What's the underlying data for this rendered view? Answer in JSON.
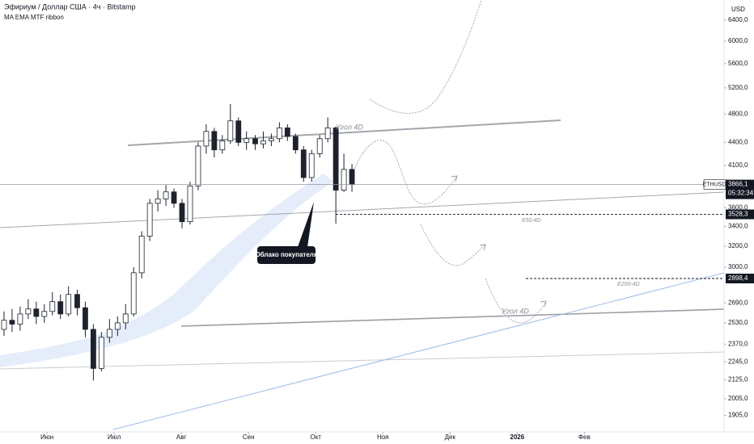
{
  "chart_data": {
    "type": "candlestick",
    "title": "Эфириум / Доллар США · 4ч · Bitstamp",
    "subtitle": "MA EMA MTF ribbon",
    "currency": "USD",
    "symbol": "ETHUSD",
    "countdown": "05:32:34",
    "log_scale": true,
    "color": "#1e222d",
    "x": [
      5.36,
      5.48,
      5.6,
      5.72,
      5.84,
      5.96,
      6.08,
      6.2,
      6.32,
      6.45,
      6.57,
      6.69,
      6.81,
      6.93,
      7.05,
      7.17,
      7.29,
      7.41,
      7.53,
      7.65,
      7.77,
      7.89,
      8.01,
      8.13,
      8.25,
      8.37,
      8.49,
      8.61,
      8.73,
      8.85,
      8.97,
      9.1,
      9.22,
      9.34,
      9.46,
      9.58,
      9.7,
      9.82,
      9.94,
      10.06,
      10.18,
      10.3,
      10.42,
      10.54
    ],
    "open": [
      2480,
      2550,
      2520,
      2600,
      2640,
      2580,
      2620,
      2700,
      2600,
      2760,
      2650,
      2480,
      2200,
      2420,
      2480,
      2530,
      2600,
      2950,
      3300,
      3650,
      3700,
      3780,
      3650,
      3450,
      3850,
      4350,
      4550,
      4300,
      4420,
      4700,
      4400,
      4450,
      4380,
      4420,
      4450,
      4600,
      4480,
      4300,
      3950,
      4250,
      4450,
      4600,
      3800,
      4050
    ],
    "high": [
      2620,
      2640,
      2660,
      2720,
      2700,
      2680,
      2780,
      2760,
      2830,
      2800,
      2700,
      2520,
      2460,
      2560,
      2580,
      2680,
      3000,
      3350,
      3700,
      3800,
      3860,
      3820,
      3700,
      3900,
      4400,
      4650,
      4600,
      4500,
      4950,
      4750,
      4550,
      4500,
      4550,
      4520,
      4680,
      4650,
      4520,
      4350,
      4300,
      4500,
      4750,
      4620,
      4250,
      4120
    ],
    "low": [
      2430,
      2460,
      2470,
      2560,
      2520,
      2530,
      2590,
      2560,
      2580,
      2590,
      2420,
      2120,
      2180,
      2380,
      2430,
      2480,
      2580,
      2900,
      3250,
      3560,
      3620,
      3600,
      3380,
      3420,
      3800,
      4250,
      4200,
      4250,
      4380,
      4350,
      4300,
      4300,
      4320,
      4350,
      4400,
      4420,
      4250,
      3900,
      3900,
      4200,
      4400,
      3430,
      3780,
      3780
    ],
    "close": [
      2550,
      2520,
      2600,
      2640,
      2580,
      2620,
      2700,
      2600,
      2760,
      2650,
      2480,
      2200,
      2420,
      2480,
      2530,
      2600,
      2950,
      3300,
      3650,
      3700,
      3780,
      3650,
      3450,
      3850,
      4350,
      4550,
      4300,
      4420,
      4700,
      4400,
      4450,
      4380,
      4420,
      4450,
      4600,
      4480,
      4300,
      3950,
      4250,
      4450,
      4600,
      3800,
      4050,
      3866
    ],
    "xlim": [
      5.3,
      16.08
    ],
    "xticks": [
      {
        "value": 6,
        "label": "Июн"
      },
      {
        "value": 7,
        "label": "Июл"
      },
      {
        "value": 8,
        "label": "Авг"
      },
      {
        "value": 9,
        "label": "Сен"
      },
      {
        "value": 10,
        "label": "Окт"
      },
      {
        "value": 11,
        "label": "Ноя"
      },
      {
        "value": 12,
        "label": "Дек"
      },
      {
        "value": 13,
        "label": "2026"
      },
      {
        "value": 14,
        "label": "Фев"
      }
    ],
    "ylim": [
      1811,
      6808
    ],
    "yticks": [
      {
        "value": 1905,
        "label": "1905,0"
      },
      {
        "value": 2005,
        "label": "2005,0"
      },
      {
        "value": 2125,
        "label": "2125,0"
      },
      {
        "value": 2245,
        "label": "2245,0"
      },
      {
        "value": 2370,
        "label": "2370,0"
      },
      {
        "value": 2530,
        "label": "2530,0"
      },
      {
        "value": 2690,
        "label": "2690,0"
      },
      {
        "value": 3000,
        "label": "3000,0"
      },
      {
        "value": 3200,
        "label": "3200,0"
      },
      {
        "value": 3400,
        "label": "3400,0"
      },
      {
        "value": 3600,
        "label": "3600,0"
      },
      {
        "value": 4100,
        "label": "4100,0"
      },
      {
        "value": 4400,
        "label": "4400,0"
      },
      {
        "value": 4800,
        "label": "4800,0"
      },
      {
        "value": 5200,
        "label": "5200,0"
      },
      {
        "value": 5600,
        "label": "5600,0"
      },
      {
        "value": 6000,
        "label": "6000,0"
      },
      {
        "value": 6400,
        "label": "6400,0"
      }
    ],
    "price_lines": [
      {
        "value": 3866.1,
        "label": "3866,1"
      },
      {
        "value": 3528.3,
        "label": "3528,3"
      },
      {
        "value": 2898.4,
        "label": "2898,4"
      }
    ],
    "annotations": [
      "Угол 4D",
      "Угол 4D",
      "E50-4D",
      "E200-4D",
      "Облако покупателя"
    ]
  }
}
